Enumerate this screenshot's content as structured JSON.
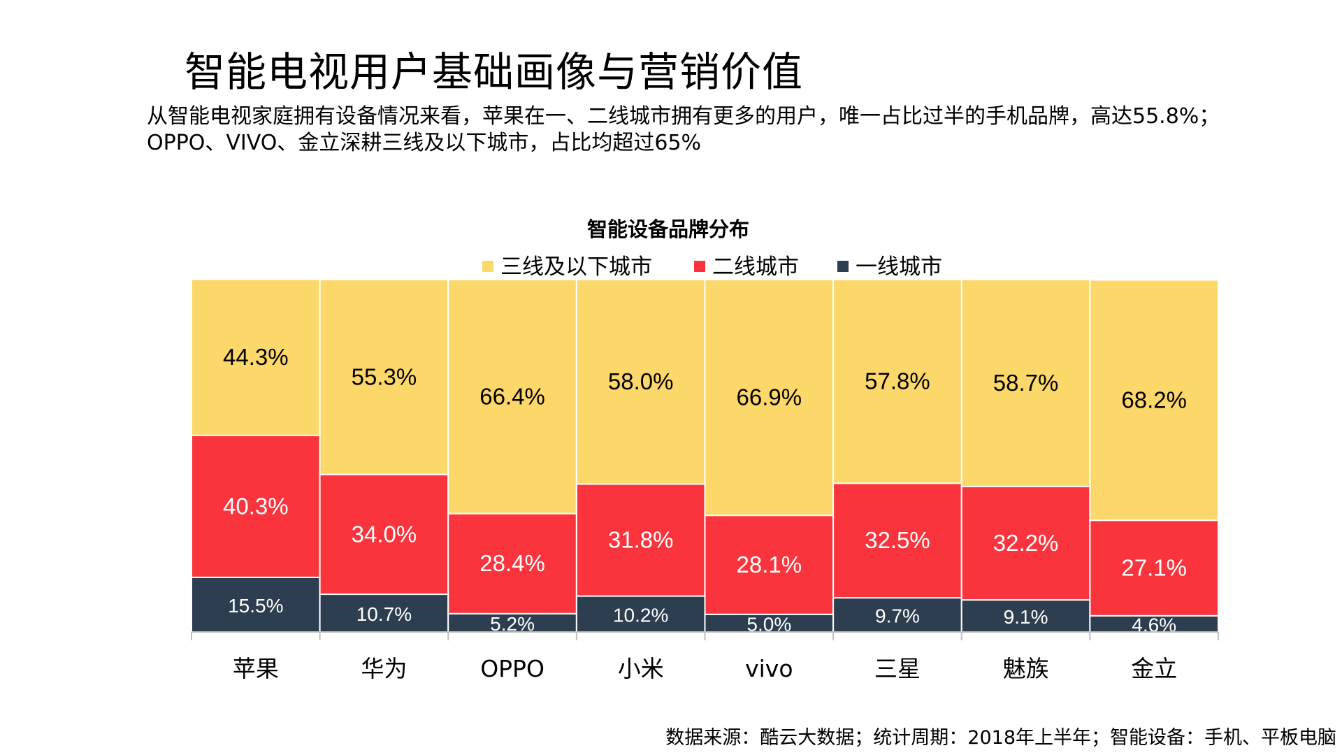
{
  "page": {
    "title": "智能电视用户基础画像与营销价值",
    "subtitle": "从智能电视家庭拥有设备情况来看，苹果在一、二线城市拥有更多的用户，唯一占比过半的手机品牌，高达55.8%；OPPO、VIVO、金立深耕三线及以下城市，占比均超过65%",
    "source": "数据来源：酷云大数据；统计周期：2018年上半年；智能设备：手机、平板电脑"
  },
  "colors": {
    "tier3": "#FCD76A",
    "tier2": "#FA343D",
    "tier1": "#2D3E50"
  },
  "chart_data": {
    "type": "bar",
    "stacked": true,
    "title": "智能设备品牌分布",
    "legend_position": "top-center",
    "categories": [
      "苹果",
      "华为",
      "OPPO",
      "小米",
      "vivo",
      "三星",
      "魅族",
      "金立"
    ],
    "series": [
      {
        "name": "一线城市",
        "color": "#2D3E50",
        "values": [
          15.5,
          10.7,
          5.2,
          10.2,
          5.0,
          9.7,
          9.1,
          4.6
        ],
        "labels": [
          "15.5%",
          "10.7%",
          "5.2%",
          "10.2%",
          "5.0%",
          "9.7%",
          "9.1%",
          "4.6%"
        ]
      },
      {
        "name": "二线城市",
        "color": "#FA343D",
        "values": [
          40.3,
          34.0,
          28.4,
          31.8,
          28.1,
          32.5,
          32.2,
          27.1
        ],
        "labels": [
          "40.3%",
          "34.0%",
          "28.4%",
          "31.8%",
          "28.1%",
          "32.5%",
          "32.2%",
          "27.1%"
        ]
      },
      {
        "name": "三线及以下城市",
        "color": "#FCD76A",
        "values": [
          44.3,
          55.3,
          66.4,
          58.0,
          66.9,
          57.8,
          58.7,
          68.2
        ],
        "labels": [
          "44.3%",
          "55.3%",
          "66.4%",
          "58.0%",
          "66.9%",
          "57.8%",
          "58.7%",
          "68.2%"
        ]
      }
    ],
    "legend_order": [
      "三线及以下城市",
      "二线城市",
      "一线城市"
    ],
    "ylim": [
      0,
      100
    ]
  }
}
